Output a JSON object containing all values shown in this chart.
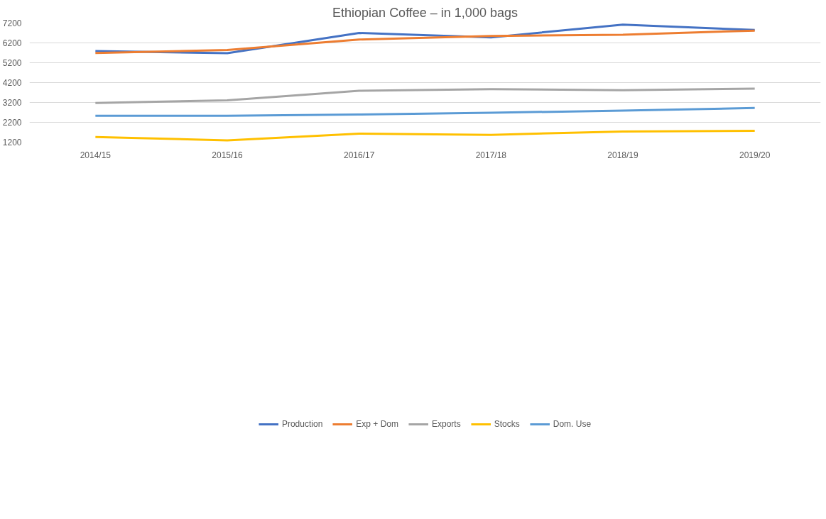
{
  "chart_data": {
    "type": "line",
    "title": "Ethiopian Coffee – in 1,000 bags",
    "categories": [
      "2014/15",
      "2015/16",
      "2016/17",
      "2017/18",
      "2018/19",
      "2019/20"
    ],
    "series": [
      {
        "name": "Production",
        "color": "#4472c4",
        "values": [
          5790,
          5680,
          6700,
          6480,
          7120,
          6850
        ]
      },
      {
        "name": "Exp + Dom",
        "color": "#ed7d31",
        "values": [
          5690,
          5840,
          6370,
          6550,
          6610,
          6820
        ]
      },
      {
        "name": "Exports",
        "color": "#a5a5a5",
        "values": [
          3170,
          3310,
          3790,
          3870,
          3820,
          3900
        ]
      },
      {
        "name": "Stocks",
        "color": "#ffc000",
        "values": [
          1460,
          1290,
          1630,
          1570,
          1740,
          1770
        ]
      },
      {
        "name": "Dom. Use",
        "color": "#5b9bd5",
        "values": [
          2530,
          2530,
          2590,
          2680,
          2790,
          2920
        ]
      }
    ],
    "ylim": [
      1200,
      7200
    ],
    "yticks": [
      1200,
      2200,
      3200,
      4200,
      5200,
      6200,
      7200
    ],
    "grid": "y",
    "legend": "bottom",
    "marker": "none",
    "line_style": "solid"
  }
}
